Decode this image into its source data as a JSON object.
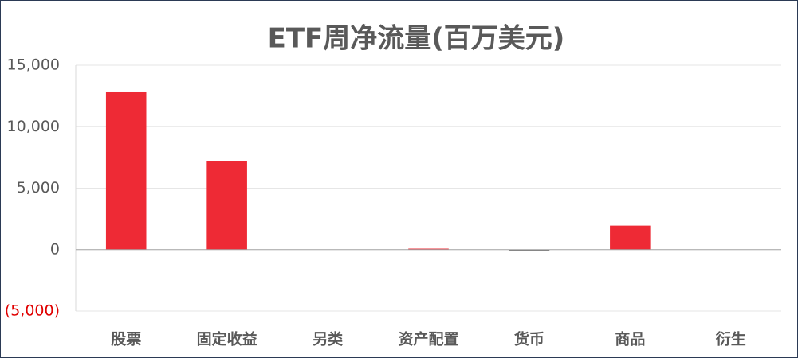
{
  "chart_data": {
    "type": "bar",
    "title": "ETF周净流量(百万美元)",
    "categories": [
      "股票",
      "固定收益",
      "另类",
      "资产配置",
      "货币",
      "商品",
      "衍生"
    ],
    "values": [
      12800,
      7200,
      0,
      80,
      -60,
      1950,
      0
    ],
    "color": "#ee2a35",
    "negative_color": "#1a1a1a",
    "negative_label_color": "#e00000",
    "ylim": [
      -5000,
      15000
    ],
    "yticks": [
      {
        "value": -5000,
        "label": "(5,000)"
      },
      0,
      {
        "value": 5000,
        "label": "5,000"
      },
      {
        "value": 10000,
        "label": "10,000"
      },
      {
        "value": 15000,
        "label": "15,000"
      }
    ],
    "grid": true
  }
}
